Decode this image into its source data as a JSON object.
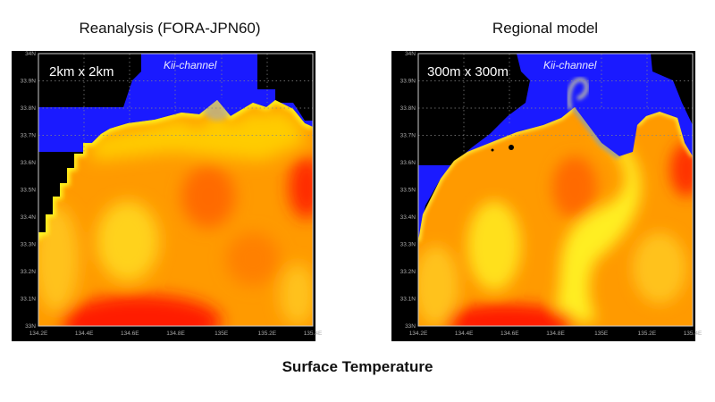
{
  "caption": "Surface Temperature",
  "chart_data": [
    {
      "type": "heatmap",
      "title": "Reanalysis (FORA-JPN60)",
      "resolution_label": "2km x 2km",
      "annotation": "Kii-channel",
      "xlim": [
        134.2,
        135.4
      ],
      "ylim": [
        33.0,
        34.0
      ],
      "xticks": [
        "134.2E",
        "134.4E",
        "134.6E",
        "134.8E",
        "135E",
        "135.2E",
        "135.4E"
      ],
      "yticks": [
        "34N",
        "33.9N",
        "33.8N",
        "33.7N",
        "33.6N",
        "33.5N",
        "33.4N",
        "33.3N",
        "33.2N",
        "33.1N",
        "33N"
      ],
      "grid": true,
      "colors": {
        "land": "#000000",
        "cold": "#1a1aff",
        "mid": "#ffff00",
        "warm": "#ff9a00",
        "hot": "#ff1a00"
      }
    },
    {
      "type": "heatmap",
      "title": "Regional model",
      "resolution_label": "300m x 300m",
      "annotation": "Kii-channel",
      "xlim": [
        134.2,
        135.4
      ],
      "ylim": [
        33.0,
        34.0
      ],
      "xticks": [
        "134.2E",
        "134.4E",
        "134.6E",
        "134.8E",
        "135E",
        "135.2E",
        "135.4E"
      ],
      "yticks": [
        "34N",
        "33.9N",
        "33.8N",
        "33.7N",
        "33.6N",
        "33.5N",
        "33.4N",
        "33.3N",
        "33.2N",
        "33.1N",
        "33N"
      ],
      "grid": true,
      "colors": {
        "land": "#000000",
        "cold": "#1a1aff",
        "mid": "#ffff00",
        "warm": "#ff9a00",
        "hot": "#ff1a00"
      }
    }
  ]
}
